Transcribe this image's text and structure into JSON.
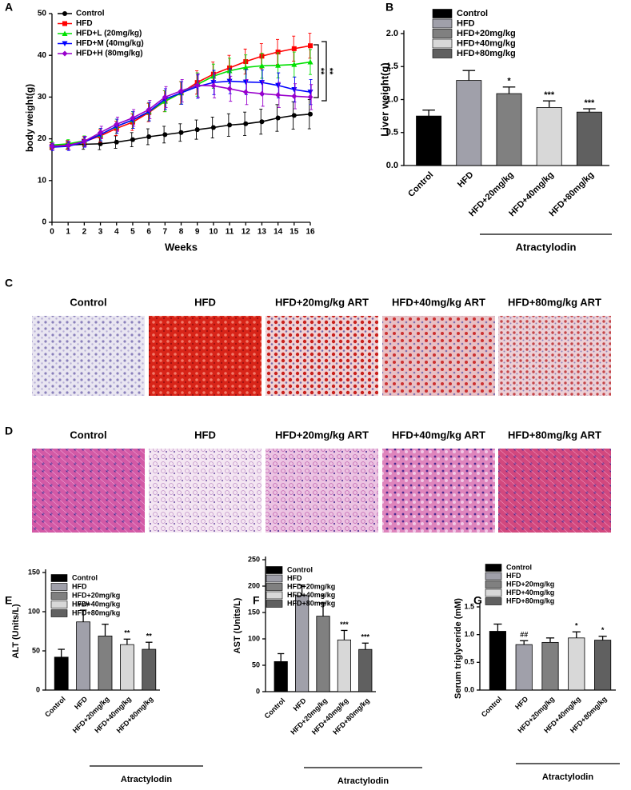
{
  "chart_data": [
    {
      "type": "line",
      "panel": "A",
      "xlabel": "Weeks",
      "ylabel": "body weight(g)",
      "x": [
        0,
        1,
        2,
        3,
        4,
        5,
        6,
        7,
        8,
        9,
        10,
        11,
        12,
        13,
        14,
        15,
        16
      ],
      "xlim": [
        0,
        16
      ],
      "xticks": [
        0,
        1,
        2,
        3,
        4,
        5,
        6,
        7,
        8,
        9,
        10,
        11,
        12,
        13,
        14,
        15,
        16
      ],
      "ylim": [
        0,
        50
      ],
      "yticks": [
        0,
        10,
        20,
        30,
        40,
        50
      ],
      "series": [
        {
          "name": "Control",
          "color": "#000000",
          "marker": "circle",
          "values": [
            18.3,
            18.5,
            18.7,
            18.8,
            19.2,
            19.8,
            20.5,
            21,
            21.5,
            22.2,
            22.7,
            23.3,
            23.6,
            24.1,
            25,
            25.6,
            25.9
          ],
          "errors": [
            0.8,
            1,
            1.2,
            1.4,
            1.5,
            1.7,
            1.9,
            2,
            2.1,
            2.3,
            2.5,
            2.7,
            2.8,
            3,
            3.2,
            3.3,
            3.5
          ]
        },
        {
          "name": "HFD",
          "color": "#ff0000",
          "marker": "square",
          "values": [
            18.2,
            18.6,
            19.3,
            20.7,
            22.5,
            24,
            26.3,
            29,
            31,
            33.5,
            35.5,
            37,
            38.5,
            39.8,
            40.8,
            41.6,
            42.3
          ],
          "errors": [
            0.8,
            1,
            1.2,
            1.5,
            1.7,
            2,
            2.2,
            2.5,
            2.7,
            2.8,
            2.9,
            3,
            3,
            3,
            3,
            3,
            3
          ]
        },
        {
          "name": "HFD+L (20mg/kg)",
          "color": "#00e000",
          "marker": "triangle",
          "values": [
            18.5,
            18.8,
            19.5,
            21,
            23,
            24.5,
            26.5,
            29,
            31,
            33,
            35,
            36.3,
            37.1,
            37.5,
            37.6,
            37.8,
            38.4
          ],
          "errors": [
            0.8,
            1,
            1.2,
            1.5,
            1.7,
            2,
            2.2,
            2.5,
            2.7,
            2.8,
            2.9,
            3,
            3,
            3,
            3,
            3,
            3
          ]
        },
        {
          "name": "HFD+M (40mg/kg)",
          "color": "#0000ff",
          "marker": "triangle-down",
          "values": [
            18,
            18.2,
            19.2,
            21,
            23,
            24.5,
            26.5,
            29.5,
            31,
            32.5,
            33.5,
            33.8,
            33.6,
            33.5,
            32.8,
            31.8,
            31.2
          ],
          "errors": [
            0.8,
            1,
            1.2,
            1.5,
            1.7,
            2,
            2.2,
            2.5,
            2.7,
            2.8,
            2.9,
            3,
            3,
            3,
            3,
            3,
            3
          ]
        },
        {
          "name": "HFD+H (80mg/kg)",
          "color": "#9900cc",
          "marker": "diamond",
          "values": [
            18.2,
            18.4,
            19.4,
            21.5,
            23.5,
            25,
            27,
            30,
            31.5,
            32.8,
            32.7,
            32,
            31.2,
            30.8,
            30.5,
            30.2,
            30
          ],
          "errors": [
            0.8,
            1,
            1.2,
            1.5,
            1.7,
            2,
            2.2,
            2.5,
            2.7,
            2.8,
            2.9,
            3,
            3,
            3,
            3,
            3,
            3
          ]
        }
      ],
      "annotations": [
        "**",
        "**"
      ]
    },
    {
      "type": "bar",
      "panel": "B",
      "ylabel": "Liver weight(g)",
      "group_label": "Atractylodin",
      "categories": [
        "Control",
        "HFD",
        "HFD+20mg/kg",
        "HFD+40mg/kg",
        "HFD+80mg/kg"
      ],
      "colors": [
        "#000000",
        "#a0a0aa",
        "#808080",
        "#d8d8d8",
        "#606060"
      ],
      "values": [
        0.75,
        1.29,
        1.09,
        0.88,
        0.81
      ],
      "errors": [
        0.09,
        0.15,
        0.1,
        0.1,
        0.05
      ],
      "significance": [
        null,
        null,
        "*",
        "***",
        "***"
      ],
      "ylim": [
        0,
        2
      ],
      "yticks": [
        {
          "value": 0,
          "label": "0.0"
        },
        0.5,
        {
          "value": 1,
          "label": "1.0"
        },
        1.5,
        {
          "value": 2,
          "label": "2.0"
        }
      ]
    },
    {
      "type": "bar",
      "panel": "E",
      "ylabel": "ALT (Units/L)",
      "group_label": "Atractylodin",
      "categories": [
        "Control",
        "HFD",
        "HFD+20mg/kg",
        "HFD+40mg/kg",
        "HFD+80mg/kg"
      ],
      "colors": [
        "#000000",
        "#a0a0aa",
        "#808080",
        "#d8d8d8",
        "#606060"
      ],
      "values": [
        42,
        87,
        69,
        58,
        52
      ],
      "errors": [
        10,
        15,
        15,
        7,
        9
      ],
      "significance": [
        null,
        "###",
        null,
        "**",
        "**"
      ],
      "ylim": [
        0,
        150
      ],
      "yticks": [
        0,
        50,
        100,
        150
      ]
    },
    {
      "type": "bar",
      "panel": "F",
      "ylabel": "AST (Units/L)",
      "group_label": "Atractylodin",
      "categories": [
        "Control",
        "HFD",
        "HFD+20mg/kg",
        "HFD+40mg/kg",
        "HFD+80mg/kg"
      ],
      "colors": [
        "#000000",
        "#a0a0aa",
        "#808080",
        "#d8d8d8",
        "#606060"
      ],
      "values": [
        57,
        182,
        143,
        98,
        80
      ],
      "errors": [
        15,
        20,
        25,
        18,
        12
      ],
      "significance": [
        null,
        null,
        "*",
        "***",
        "***"
      ],
      "ylim": [
        0,
        250
      ],
      "yticks": [
        0,
        50,
        100,
        150,
        200,
        250
      ]
    },
    {
      "type": "bar",
      "panel": "G",
      "ylabel": "Serum triglyceride (mM)",
      "group_label": "Atractylodin",
      "categories": [
        "Control",
        "HFD",
        "HFD+20mg/kg",
        "HFD+40mg/kg",
        "HFD+80mg/kg"
      ],
      "colors": [
        "#000000",
        "#a0a0aa",
        "#808080",
        "#d8d8d8",
        "#606060"
      ],
      "values": [
        1.06,
        0.82,
        0.86,
        0.94,
        0.9
      ],
      "errors": [
        0.13,
        0.07,
        0.08,
        0.11,
        0.07
      ],
      "significance": [
        null,
        "##",
        null,
        "*",
        "*"
      ],
      "ylim": [
        0,
        1.5
      ],
      "yticks": [
        {
          "value": 0,
          "label": "0.0"
        },
        0.5,
        {
          "value": 1,
          "label": "1.0"
        },
        1.5
      ]
    }
  ],
  "image_panels": [
    {
      "panel": "C",
      "labels": [
        "Control",
        "HFD",
        "HFD+20mg/kg ART",
        "HFD+40mg/kg ART",
        "HFD+80mg/kg ART"
      ]
    },
    {
      "panel": "D",
      "labels": [
        "Control",
        "HFD",
        "HFD+20mg/kg ART",
        "HFD+40mg/kg ART",
        "HFD+80mg/kg ART"
      ]
    }
  ]
}
